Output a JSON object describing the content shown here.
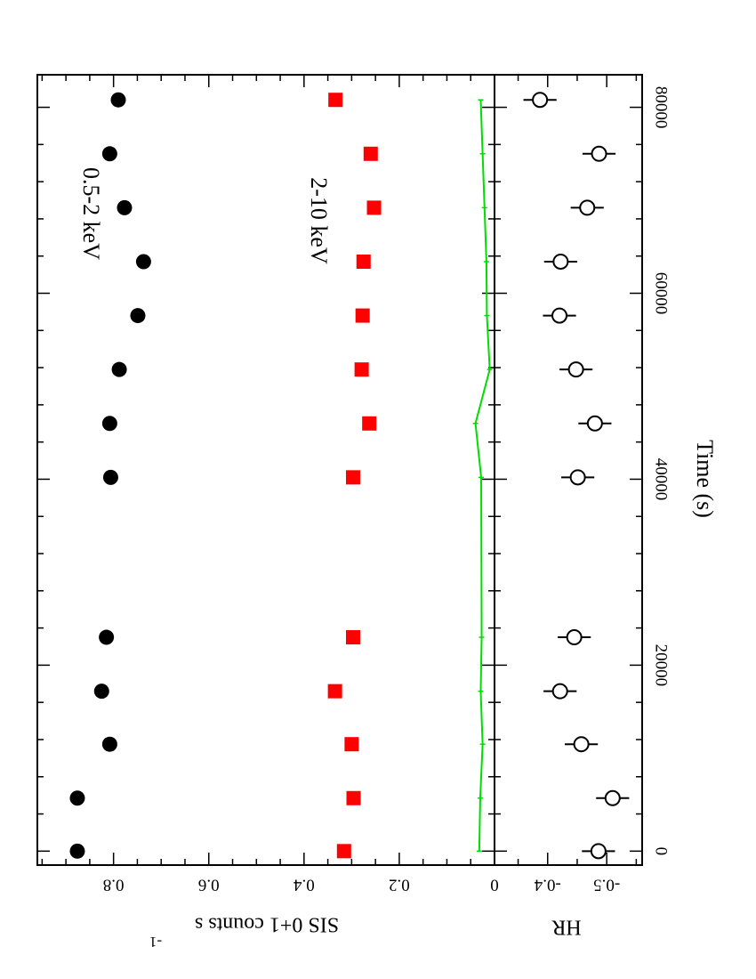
{
  "chart_data": {
    "type": "scatter",
    "orientation": "rotated-90-clockwise",
    "x": {
      "label": "Time  (s)",
      "range": [
        -1500,
        83500
      ],
      "major_ticks": [
        0,
        20000,
        40000,
        60000,
        80000
      ],
      "tick_labels": [
        "0",
        "20000",
        "40000",
        "60000",
        "80000"
      ],
      "minor_step": 4000
    },
    "panels": [
      {
        "id": "rate",
        "ylabel_main": "SIS 0+1  counts  s",
        "ylabel_sup": "-1",
        "ylim": [
          0,
          0.96
        ],
        "major_ticks": [
          0,
          0.2,
          0.4,
          0.6,
          0.8
        ],
        "tick_labels": [
          "0",
          "0.2",
          "0.4",
          "0.6",
          "0.8"
        ],
        "minor_step": 0.05,
        "annotations": [
          "0.5-2 keV",
          "2-10 keV"
        ],
        "series": [
          {
            "name": "0.5-2 keV",
            "marker": "filled-circle",
            "color": "#000000",
            "x": [
              0,
              5700,
              11500,
              17200,
              23000,
              40200,
              46000,
              51800,
              57600,
              63400,
              69200,
              75000,
              80800
            ],
            "y": [
              0.876,
              0.876,
              0.808,
              0.825,
              0.815,
              0.806,
              0.808,
              0.788,
              0.749,
              0.737,
              0.777,
              0.808,
              0.79
            ],
            "err": 0.014
          },
          {
            "name": "2-10 keV",
            "marker": "filled-square",
            "color": "#ff0000",
            "x": [
              0,
              5700,
              11500,
              17200,
              23000,
              40200,
              46000,
              51800,
              57600,
              63400,
              69200,
              75000,
              80800
            ],
            "y": [
              0.316,
              0.296,
              0.3,
              0.335,
              0.297,
              0.297,
              0.263,
              0.279,
              0.277,
              0.275,
              0.253,
              0.26,
              0.334
            ],
            "err": 0.006
          },
          {
            "name": "",
            "marker": "line",
            "color": "#00dd00",
            "x": [
              0,
              5700,
              11500,
              17200,
              23000,
              40200,
              46000,
              51800,
              57600,
              63400,
              69200,
              75000,
              80800
            ],
            "y": [
              0.032,
              0.03,
              0.025,
              0.029,
              0.027,
              0.028,
              0.04,
              0.01,
              0.016,
              0.017,
              0.021,
              0.025,
              0.029
            ]
          }
        ]
      },
      {
        "id": "hr",
        "ylabel_main": "HR",
        "ylim": [
          -0.56,
          -0.31
        ],
        "major_ticks": [
          -0.5,
          -0.4
        ],
        "tick_labels": [
          "-0.5",
          "-0.4"
        ],
        "minor_step": 0.05,
        "series": [
          {
            "name": "",
            "marker": "open-circle",
            "color": "#000000",
            "x": [
              0,
              5700,
              11500,
              17200,
              23000,
              40200,
              46000,
              51800,
              57600,
              63400,
              69200,
              75000,
              80800
            ],
            "y": [
              -0.486,
              -0.51,
              -0.457,
              -0.421,
              -0.445,
              -0.451,
              -0.48,
              -0.448,
              -0.42,
              -0.422,
              -0.467,
              -0.487,
              -0.387
            ],
            "err": 0.028
          }
        ]
      }
    ]
  }
}
